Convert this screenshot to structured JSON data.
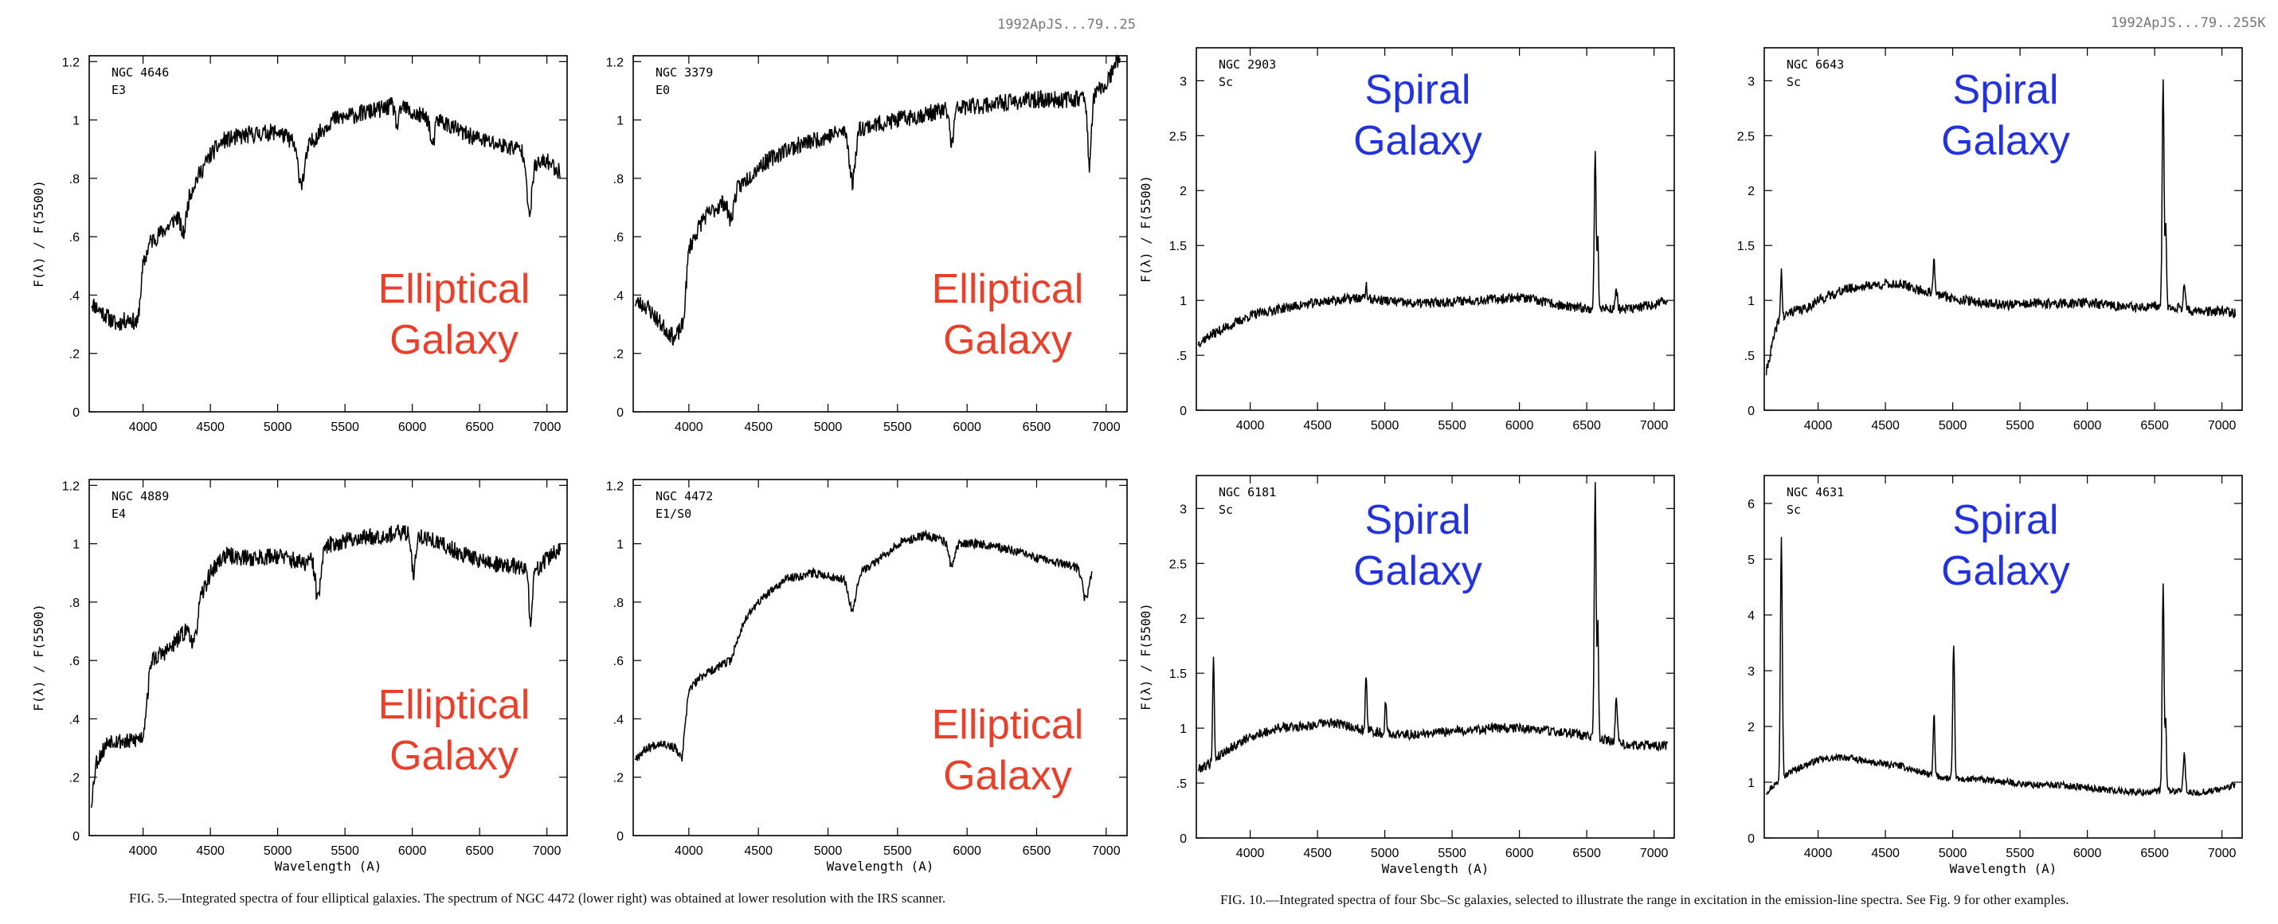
{
  "header": {
    "left_code": "1992ApJS...79..25",
    "right_code": "1992ApJS...79..255K"
  },
  "captions": {
    "left": "FIG. 5.—Integrated spectra of four elliptical galaxies. The spectrum of NGC 4472 (lower right) was obtained at lower resolution with the IRS scanner.",
    "right": "FIG. 10.—Integrated spectra of four Sbc–Sc galaxies, selected to illustrate the range in excitation in the emission-line spectra. See Fig. 9 for other examples."
  },
  "colors": {
    "elliptical_label": "#e8402a",
    "spiral_label": "#2233dd",
    "spectrum": "#000000"
  },
  "chart_data": [
    {
      "type": "line",
      "name": "NGC 4646",
      "subtitle": "E3",
      "overlay_lines": [
        "Elliptical",
        "Galaxy"
      ],
      "overlay_kind": "elliptical",
      "xlabel": "",
      "ylabel": "F(λ) / F(5500)",
      "xlim": [
        3600,
        7150
      ],
      "ylim": [
        0,
        1.22
      ],
      "xticks": [
        4000,
        4500,
        5000,
        5500,
        6000,
        6500,
        7000
      ],
      "yticks": [
        0,
        0.2,
        0.4,
        0.6,
        0.8,
        1,
        1.2
      ],
      "yticklabels": [
        "0",
        ".2",
        ".4",
        ".6",
        ".8",
        "1",
        "1.2"
      ],
      "continuum": [
        [
          3600,
          0.38
        ],
        [
          3700,
          0.34
        ],
        [
          3800,
          0.3
        ],
        [
          3900,
          0.32
        ],
        [
          3960,
          0.3
        ],
        [
          4000,
          0.5
        ],
        [
          4050,
          0.58
        ],
        [
          4200,
          0.64
        ],
        [
          4300,
          0.7
        ],
        [
          4400,
          0.8
        ],
        [
          4500,
          0.88
        ],
        [
          4600,
          0.93
        ],
        [
          4800,
          0.95
        ],
        [
          5000,
          0.96
        ],
        [
          5200,
          0.9
        ],
        [
          5400,
          1.0
        ],
        [
          5600,
          1.02
        ],
        [
          5800,
          1.04
        ],
        [
          5900,
          1.06
        ],
        [
          6000,
          1.02
        ],
        [
          6200,
          1.0
        ],
        [
          6400,
          0.95
        ],
        [
          6600,
          0.92
        ],
        [
          6800,
          0.9
        ],
        [
          6900,
          0.84
        ],
        [
          7000,
          0.86
        ],
        [
          7100,
          0.82
        ]
      ],
      "features": [
        {
          "x": 4300,
          "depth": -0.09,
          "width": 20
        },
        {
          "x": 5175,
          "depth": -0.12,
          "width": 25
        },
        {
          "x": 5890,
          "depth": -0.08,
          "width": 15
        },
        {
          "x": 6150,
          "depth": -0.1,
          "width": 15
        },
        {
          "x": 6870,
          "depth": -0.2,
          "width": 15
        }
      ],
      "noise": 0.03,
      "seed": 11
    },
    {
      "type": "line",
      "name": "NGC 3379",
      "subtitle": "E0",
      "overlay_lines": [
        "Elliptical",
        "Galaxy"
      ],
      "overlay_kind": "elliptical",
      "xlabel": "",
      "ylabel": "",
      "xlim": [
        3600,
        7150
      ],
      "ylim": [
        0,
        1.22
      ],
      "xticks": [
        4000,
        4500,
        5000,
        5500,
        6000,
        6500,
        7000
      ],
      "yticks": [
        0,
        0.2,
        0.4,
        0.6,
        0.8,
        1,
        1.2
      ],
      "yticklabels": [
        "0",
        ".2",
        ".4",
        ".6",
        ".8",
        "1",
        "1.2"
      ],
      "continuum": [
        [
          3600,
          0.38
        ],
        [
          3700,
          0.36
        ],
        [
          3800,
          0.3
        ],
        [
          3900,
          0.25
        ],
        [
          3960,
          0.3
        ],
        [
          4000,
          0.56
        ],
        [
          4100,
          0.66
        ],
        [
          4300,
          0.74
        ],
        [
          4500,
          0.84
        ],
        [
          4700,
          0.9
        ],
        [
          4900,
          0.93
        ],
        [
          5100,
          0.96
        ],
        [
          5300,
          0.98
        ],
        [
          5500,
          1.0
        ],
        [
          5700,
          1.02
        ],
        [
          5900,
          1.04
        ],
        [
          6100,
          1.05
        ],
        [
          6300,
          1.06
        ],
        [
          6500,
          1.07
        ],
        [
          6700,
          1.07
        ],
        [
          6900,
          1.08
        ],
        [
          7000,
          1.12
        ],
        [
          7100,
          1.22
        ]
      ],
      "features": [
        {
          "x": 4300,
          "depth": -0.08,
          "width": 20
        },
        {
          "x": 5175,
          "depth": -0.18,
          "width": 20
        },
        {
          "x": 5890,
          "depth": -0.12,
          "width": 15
        },
        {
          "x": 6880,
          "depth": -0.25,
          "width": 12
        }
      ],
      "noise": 0.03,
      "seed": 23
    },
    {
      "type": "line",
      "name": "NGC 2903",
      "subtitle": "Sc",
      "overlay_lines": [
        "Spiral",
        "Galaxy"
      ],
      "overlay_kind": "spiral",
      "xlabel": "",
      "ylabel": "F(λ) / F(5500)",
      "xlim": [
        3600,
        7150
      ],
      "ylim": [
        0,
        3.3
      ],
      "xticks": [
        4000,
        4500,
        5000,
        5500,
        6000,
        6500,
        7000
      ],
      "yticks": [
        0,
        0.5,
        1,
        1.5,
        2,
        2.5,
        3
      ],
      "yticklabels": [
        "0",
        ".5",
        "1",
        "1.5",
        "2",
        "2.5",
        "3"
      ],
      "continuum": [
        [
          3600,
          0.6
        ],
        [
          3700,
          0.68
        ],
        [
          3800,
          0.74
        ],
        [
          3900,
          0.8
        ],
        [
          4000,
          0.86
        ],
        [
          4200,
          0.92
        ],
        [
          4400,
          0.96
        ],
        [
          4600,
          1.0
        ],
        [
          4800,
          1.02
        ],
        [
          5000,
          1.0
        ],
        [
          5200,
          0.97
        ],
        [
          5400,
          0.98
        ],
        [
          5600,
          1.0
        ],
        [
          5800,
          1.01
        ],
        [
          6000,
          1.03
        ],
        [
          6200,
          0.98
        ],
        [
          6400,
          0.93
        ],
        [
          6600,
          0.93
        ],
        [
          6800,
          0.92
        ],
        [
          7000,
          0.96
        ],
        [
          7100,
          1.0
        ]
      ],
      "features": [
        {
          "x": 4861,
          "depth": 0.12,
          "width": 6
        },
        {
          "x": 6563,
          "depth": 1.42,
          "width": 7
        },
        {
          "x": 6583,
          "depth": 0.6,
          "width": 5
        },
        {
          "x": 6720,
          "depth": 0.16,
          "width": 8
        }
      ],
      "noise": 0.045,
      "seed": 37
    },
    {
      "type": "line",
      "name": "NGC 6643",
      "subtitle": "Sc",
      "overlay_lines": [
        "Spiral",
        "Galaxy"
      ],
      "overlay_kind": "spiral",
      "xlabel": "",
      "ylabel": "",
      "xlim": [
        3600,
        7150
      ],
      "ylim": [
        0,
        3.3
      ],
      "xticks": [
        4000,
        4500,
        5000,
        5500,
        6000,
        6500,
        7000
      ],
      "yticks": [
        0,
        0.5,
        1,
        1.5,
        2,
        2.5,
        3
      ],
      "yticklabels": [
        "0",
        ".5",
        "1",
        "1.5",
        "2",
        "2.5",
        "3"
      ],
      "continuum": [
        [
          3600,
          0.25
        ],
        [
          3650,
          0.55
        ],
        [
          3700,
          0.8
        ],
        [
          3800,
          0.9
        ],
        [
          3900,
          0.92
        ],
        [
          4000,
          1.0
        ],
        [
          4200,
          1.1
        ],
        [
          4400,
          1.14
        ],
        [
          4600,
          1.15
        ],
        [
          4800,
          1.08
        ],
        [
          5000,
          1.02
        ],
        [
          5200,
          0.98
        ],
        [
          5400,
          0.96
        ],
        [
          5600,
          0.97
        ],
        [
          5800,
          0.97
        ],
        [
          6000,
          0.98
        ],
        [
          6200,
          0.95
        ],
        [
          6400,
          0.93
        ],
        [
          6600,
          0.95
        ],
        [
          6800,
          0.9
        ],
        [
          7000,
          0.9
        ],
        [
          7100,
          0.88
        ]
      ],
      "features": [
        {
          "x": 3727,
          "depth": 0.45,
          "width": 6
        },
        {
          "x": 4861,
          "depth": 0.3,
          "width": 6
        },
        {
          "x": 6563,
          "depth": 2.05,
          "width": 7
        },
        {
          "x": 6583,
          "depth": 0.7,
          "width": 5
        },
        {
          "x": 6720,
          "depth": 0.25,
          "width": 8
        }
      ],
      "noise": 0.045,
      "seed": 41
    },
    {
      "type": "line",
      "name": "NGC 4889",
      "subtitle": "E4",
      "overlay_lines": [
        "Elliptical",
        "Galaxy"
      ],
      "overlay_kind": "elliptical",
      "xlabel": "Wavelength    (A)",
      "ylabel": "F(λ) / F(5500)",
      "xlim": [
        3600,
        7150
      ],
      "ylim": [
        0,
        1.22
      ],
      "xticks": [
        4000,
        4500,
        5000,
        5500,
        6000,
        6500,
        7000
      ],
      "yticks": [
        0,
        0.2,
        0.4,
        0.6,
        0.8,
        1,
        1.2
      ],
      "yticklabels": [
        "0",
        ".2",
        ".4",
        ".6",
        ".8",
        "1",
        "1.2"
      ],
      "continuum": [
        [
          3600,
          0.05
        ],
        [
          3650,
          0.25
        ],
        [
          3750,
          0.33
        ],
        [
          3900,
          0.32
        ],
        [
          4000,
          0.34
        ],
        [
          4060,
          0.6
        ],
        [
          4200,
          0.64
        ],
        [
          4350,
          0.72
        ],
        [
          4500,
          0.9
        ],
        [
          4600,
          0.96
        ],
        [
          4800,
          0.95
        ],
        [
          5000,
          0.96
        ],
        [
          5200,
          0.93
        ],
        [
          5400,
          1.0
        ],
        [
          5600,
          1.02
        ],
        [
          5800,
          1.03
        ],
        [
          6000,
          1.04
        ],
        [
          6200,
          1.0
        ],
        [
          6400,
          0.96
        ],
        [
          6600,
          0.93
        ],
        [
          6800,
          0.92
        ],
        [
          6900,
          0.9
        ],
        [
          7000,
          0.95
        ],
        [
          7100,
          0.98
        ]
      ],
      "features": [
        {
          "x": 4380,
          "depth": -0.1,
          "width": 20
        },
        {
          "x": 5300,
          "depth": -0.15,
          "width": 20
        },
        {
          "x": 6010,
          "depth": -0.14,
          "width": 15
        },
        {
          "x": 6880,
          "depth": -0.18,
          "width": 12
        }
      ],
      "noise": 0.03,
      "seed": 53
    },
    {
      "type": "line",
      "name": "NGC 4472",
      "subtitle": "E1/S0",
      "overlay_lines": [
        "Elliptical",
        "Galaxy"
      ],
      "overlay_kind": "elliptical",
      "xlabel": "Wavelength    (A)",
      "ylabel": "",
      "xlim": [
        3600,
        7150
      ],
      "ylim": [
        0,
        1.22
      ],
      "xticks": [
        4000,
        4500,
        5000,
        5500,
        6000,
        6500,
        7000
      ],
      "yticks": [
        0,
        0.2,
        0.4,
        0.6,
        0.8,
        1,
        1.2
      ],
      "yticklabels": [
        "0",
        ".2",
        ".4",
        ".6",
        ".8",
        "1",
        "1.2"
      ],
      "continuum": [
        [
          3600,
          0.26
        ],
        [
          3700,
          0.3
        ],
        [
          3800,
          0.32
        ],
        [
          3900,
          0.3
        ],
        [
          3950,
          0.26
        ],
        [
          4000,
          0.5
        ],
        [
          4100,
          0.55
        ],
        [
          4300,
          0.6
        ],
        [
          4400,
          0.74
        ],
        [
          4500,
          0.8
        ],
        [
          4700,
          0.88
        ],
        [
          4900,
          0.9
        ],
        [
          5100,
          0.88
        ],
        [
          5300,
          0.92
        ],
        [
          5500,
          1.0
        ],
        [
          5700,
          1.03
        ],
        [
          5900,
          1.0
        ],
        [
          6100,
          1.0
        ],
        [
          6300,
          0.98
        ],
        [
          6500,
          0.95
        ],
        [
          6700,
          0.93
        ],
        [
          6900,
          0.9
        ]
      ],
      "features": [
        {
          "x": 5175,
          "depth": -0.12,
          "width": 25
        },
        {
          "x": 5890,
          "depth": -0.08,
          "width": 20
        },
        {
          "x": 6850,
          "depth": -0.1,
          "width": 20
        }
      ],
      "noise": 0.015,
      "seed": 67
    },
    {
      "type": "line",
      "name": "NGC 6181",
      "subtitle": "Sc",
      "overlay_lines": [
        "Spiral",
        "Galaxy"
      ],
      "overlay_kind": "spiral",
      "xlabel": "Wavelength    (A)",
      "ylabel": "F(λ) / F(5500)",
      "xlim": [
        3600,
        7150
      ],
      "ylim": [
        0,
        3.3
      ],
      "xticks": [
        4000,
        4500,
        5000,
        5500,
        6000,
        6500,
        7000
      ],
      "yticks": [
        0,
        0.5,
        1,
        1.5,
        2,
        2.5,
        3
      ],
      "yticklabels": [
        "0",
        ".5",
        "1",
        "1.5",
        "2",
        "2.5",
        "3"
      ],
      "continuum": [
        [
          3600,
          0.62
        ],
        [
          3700,
          0.68
        ],
        [
          3800,
          0.78
        ],
        [
          3900,
          0.85
        ],
        [
          4000,
          0.92
        ],
        [
          4200,
          1.0
        ],
        [
          4400,
          1.02
        ],
        [
          4600,
          1.05
        ],
        [
          4800,
          1.0
        ],
        [
          5000,
          0.95
        ],
        [
          5200,
          0.94
        ],
        [
          5400,
          0.96
        ],
        [
          5600,
          0.98
        ],
        [
          5800,
          1.0
        ],
        [
          6000,
          1.0
        ],
        [
          6200,
          0.98
        ],
        [
          6400,
          0.95
        ],
        [
          6600,
          0.9
        ],
        [
          6800,
          0.85
        ],
        [
          7000,
          0.84
        ],
        [
          7100,
          0.84
        ]
      ],
      "features": [
        {
          "x": 3727,
          "depth": 0.95,
          "width": 6
        },
        {
          "x": 4861,
          "depth": 0.5,
          "width": 6
        },
        {
          "x": 5007,
          "depth": 0.3,
          "width": 6
        },
        {
          "x": 6563,
          "depth": 2.3,
          "width": 7
        },
        {
          "x": 6583,
          "depth": 1.0,
          "width": 5
        },
        {
          "x": 6720,
          "depth": 0.42,
          "width": 8
        }
      ],
      "noise": 0.045,
      "seed": 79
    },
    {
      "type": "line",
      "name": "NGC 4631",
      "subtitle": "Sc",
      "overlay_lines": [
        "Spiral",
        "Galaxy"
      ],
      "overlay_kind": "spiral",
      "xlabel": "Wavelength    (A)",
      "ylabel": "",
      "xlim": [
        3600,
        7150
      ],
      "ylim": [
        0,
        6.5
      ],
      "xticks": [
        4000,
        4500,
        5000,
        5500,
        6000,
        6500,
        7000
      ],
      "yticks": [
        0,
        1,
        2,
        3,
        4,
        5,
        6
      ],
      "yticklabels": [
        "0",
        "1",
        "2",
        "3",
        "4",
        "5",
        "6"
      ],
      "continuum": [
        [
          3600,
          0.8
        ],
        [
          3700,
          1.0
        ],
        [
          3800,
          1.2
        ],
        [
          4000,
          1.4
        ],
        [
          4200,
          1.45
        ],
        [
          4400,
          1.35
        ],
        [
          4600,
          1.3
        ],
        [
          4800,
          1.15
        ],
        [
          5000,
          1.05
        ],
        [
          5200,
          1.05
        ],
        [
          5400,
          1.0
        ],
        [
          5600,
          0.95
        ],
        [
          5800,
          0.95
        ],
        [
          6000,
          0.9
        ],
        [
          6200,
          0.85
        ],
        [
          6400,
          0.82
        ],
        [
          6600,
          0.85
        ],
        [
          6800,
          0.8
        ],
        [
          7000,
          0.88
        ],
        [
          7100,
          0.95
        ]
      ],
      "features": [
        {
          "x": 3727,
          "depth": 4.4,
          "width": 7
        },
        {
          "x": 4861,
          "depth": 1.1,
          "width": 6
        },
        {
          "x": 5007,
          "depth": 2.4,
          "width": 7
        },
        {
          "x": 6563,
          "depth": 3.7,
          "width": 7
        },
        {
          "x": 6583,
          "depth": 1.2,
          "width": 5
        },
        {
          "x": 6720,
          "depth": 0.7,
          "width": 8
        }
      ],
      "noise": 0.06,
      "seed": 97
    }
  ]
}
